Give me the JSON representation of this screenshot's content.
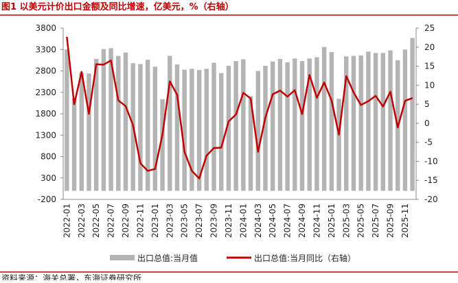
{
  "chart_data": {
    "type": "bar-line",
    "title": "图1  以美元计价出口金额及同比增速，亿美元，%（右轴）",
    "source": "资料来源：海关总署，东海证券研究所",
    "categories": [
      "2022-01",
      null,
      "2022-03",
      null,
      "2022-05",
      null,
      "2022-07",
      null,
      "2022-09",
      null,
      "2022-11",
      null,
      "2023-01",
      null,
      "2023-03",
      null,
      "2023-05",
      null,
      "2023-07",
      null,
      "2023-09",
      null,
      "2023-11",
      null,
      "2024-01",
      null,
      "2024-03",
      null,
      "2024-05",
      null,
      "2024-07",
      null,
      "2024-09",
      null,
      "2024-11",
      null,
      "2025-01",
      null,
      "2025-03",
      null,
      "2025-05",
      null,
      "2025-07",
      null,
      "2025-09",
      null,
      "2025-11",
      null
    ],
    "series": [
      {
        "name": "出口总值:当月值",
        "color": "#b4b4b4",
        "values": [
          3300,
          2170,
          2760,
          2740,
          3080,
          3310,
          3330,
          3150,
          3230,
          2980,
          2960,
          3060,
          2900,
          2140,
          3150,
          2950,
          2830,
          2850,
          2820,
          2850,
          2990,
          2750,
          2920,
          3030,
          3070,
          2210,
          2800,
          2920,
          3020,
          3080,
          3000,
          3090,
          3030,
          3090,
          3120,
          3360,
          3240,
          2150,
          3140,
          3150,
          3160,
          3250,
          3220,
          3220,
          3280,
          3050,
          3300,
          3570
        ]
      },
      {
        "name": "出口总值:当月同比（右轴）",
        "color": "#c00000",
        "axis": "y2",
        "values": [
          22.7,
          5,
          13.5,
          2.5,
          15.5,
          15.4,
          16.5,
          6,
          4.5,
          -0.5,
          -10.5,
          -12.5,
          -12,
          -3,
          11,
          7.5,
          -7.5,
          -12.5,
          -14.5,
          -8.5,
          -6.5,
          -6.4,
          0.5,
          2.3,
          8,
          6.5,
          -7.5,
          1.5,
          7.6,
          8.6,
          7,
          8.7,
          2.4,
          12.7,
          6.7,
          10.7,
          6,
          -3,
          12.4,
          8.1,
          4.8,
          5.8,
          7.2,
          4.4,
          8.3,
          -1.1,
          5.9,
          6.6
        ]
      }
    ],
    "ylim": [
      -200,
      3800
    ],
    "yticks": [
      -200,
      300,
      800,
      1300,
      1800,
      2300,
      2800,
      3300,
      3800
    ],
    "y2lim": [
      -20,
      25
    ],
    "y2ticks": [
      -20,
      -15,
      -10,
      -5,
      0,
      5,
      10,
      15,
      20,
      25
    ]
  }
}
